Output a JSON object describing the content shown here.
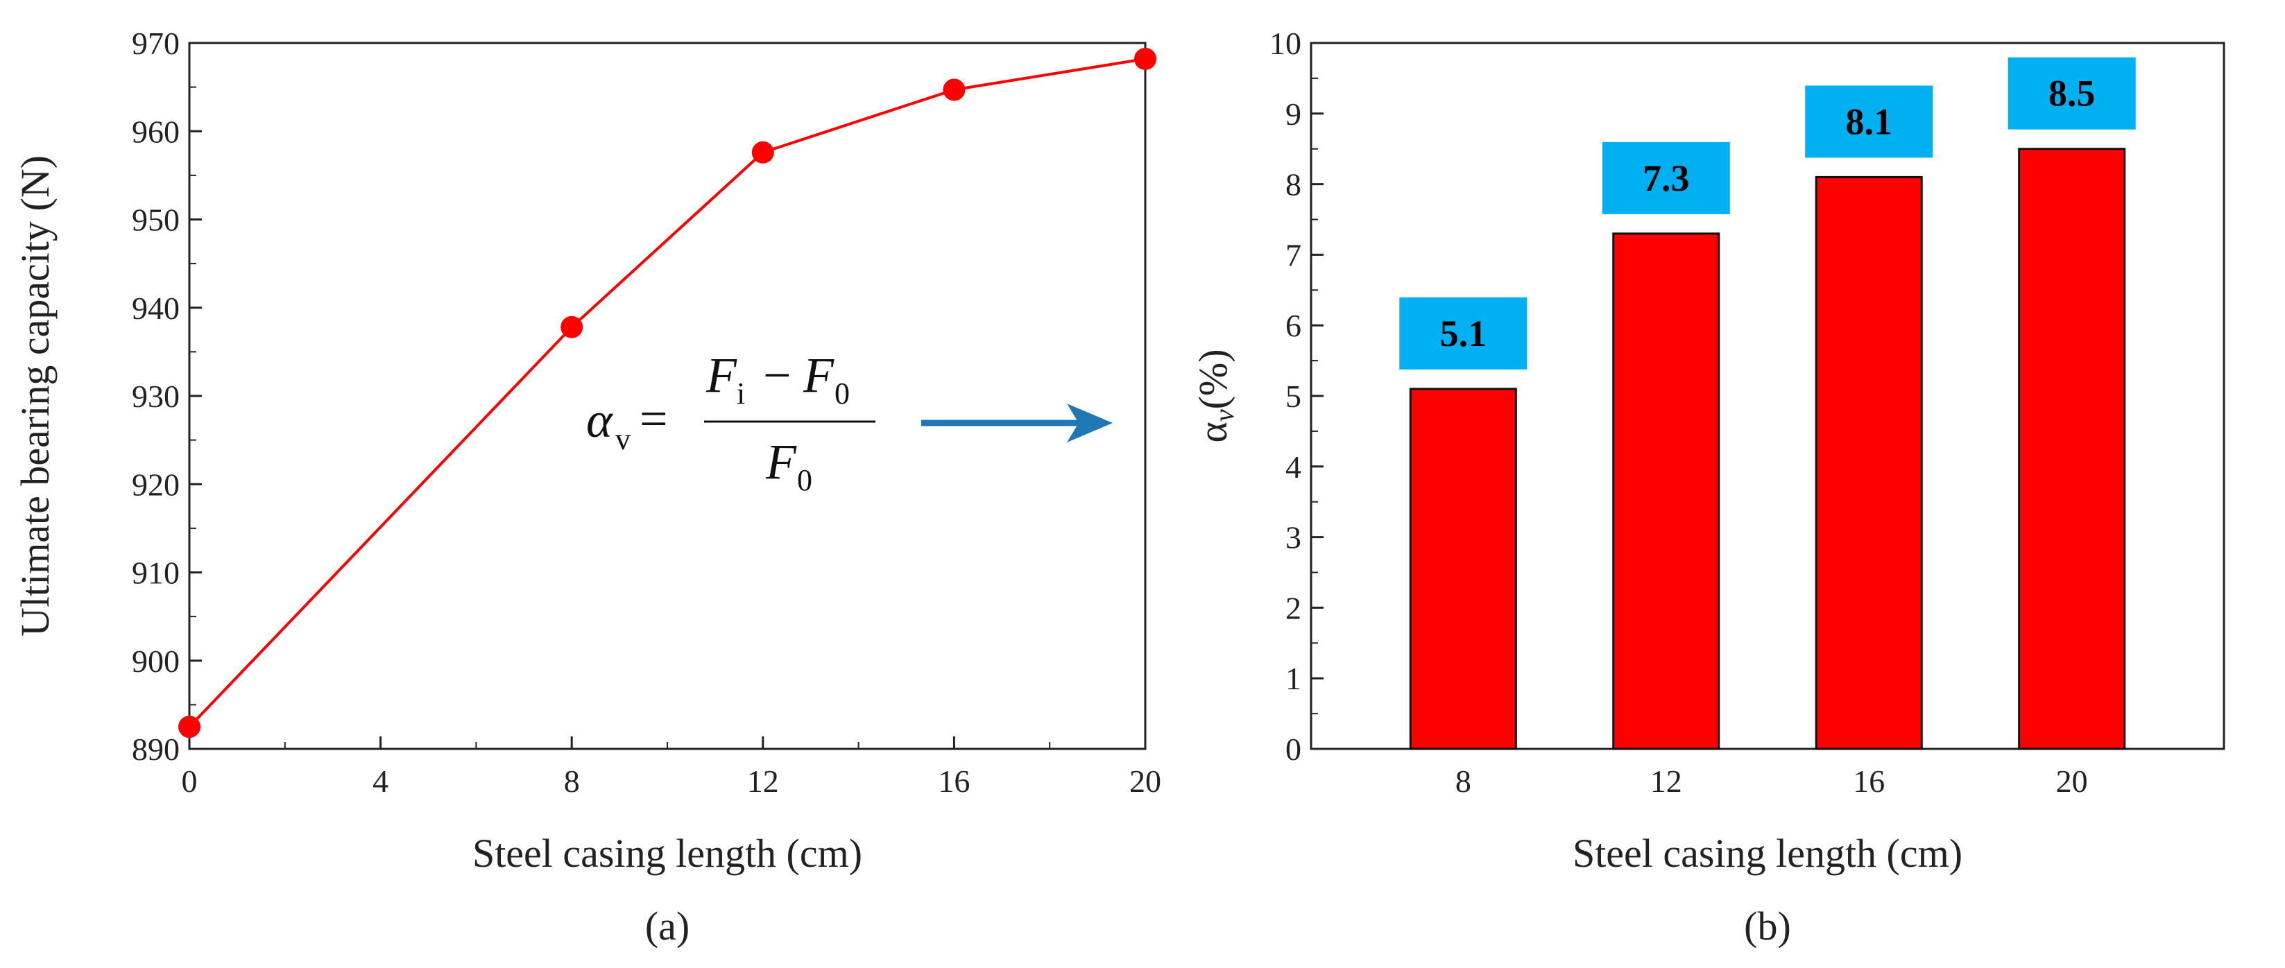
{
  "chart_data": [
    {
      "type": "line",
      "panel": "(a)",
      "title": "",
      "xlabel": "Steel casing length (cm)",
      "ylabel": "Ultimate bearing capacity (N)",
      "xlim": [
        0,
        20
      ],
      "ylim": [
        890,
        970
      ],
      "xticks": [
        "0",
        "4",
        "8",
        "12",
        "16",
        "20"
      ],
      "yticks": [
        "890",
        "900",
        "910",
        "920",
        "930",
        "940",
        "950",
        "960",
        "970"
      ],
      "series": [
        {
          "name": "Ultimate bearing capacity",
          "color": "#ff0000",
          "x": [
            0,
            8,
            12,
            16,
            20
          ],
          "y": [
            892.5,
            937.8,
            957.6,
            964.7,
            968.2
          ]
        }
      ],
      "annotation": {
        "lhs": "α",
        "lhs_sub": "v",
        "num_a": "F",
        "num_a_sub": "i",
        "minus": "−",
        "num_b": "F",
        "num_b_sub": "0",
        "den": "F",
        "den_sub": "0",
        "arrow_color": "#1f77b4"
      }
    },
    {
      "type": "bar",
      "panel": "(b)",
      "title": "",
      "xlabel": "Steel casing length (cm)",
      "ylabel": "αv(%)",
      "ylabel_main": "α",
      "ylabel_sub": "v",
      "ylabel_tail": "(%)",
      "categories": [
        "8",
        "12",
        "16",
        "20"
      ],
      "ylim": [
        0,
        10
      ],
      "yticks": [
        "0",
        "1",
        "2",
        "3",
        "4",
        "5",
        "6",
        "7",
        "8",
        "9",
        "10"
      ],
      "series": [
        {
          "name": "αv",
          "color": "#ff0000",
          "values": [
            5.1,
            7.3,
            8.1,
            8.5
          ]
        }
      ],
      "data_labels": [
        "5.1",
        "7.3",
        "8.1",
        "8.5"
      ],
      "label_box_color": "#00b0f0"
    }
  ]
}
